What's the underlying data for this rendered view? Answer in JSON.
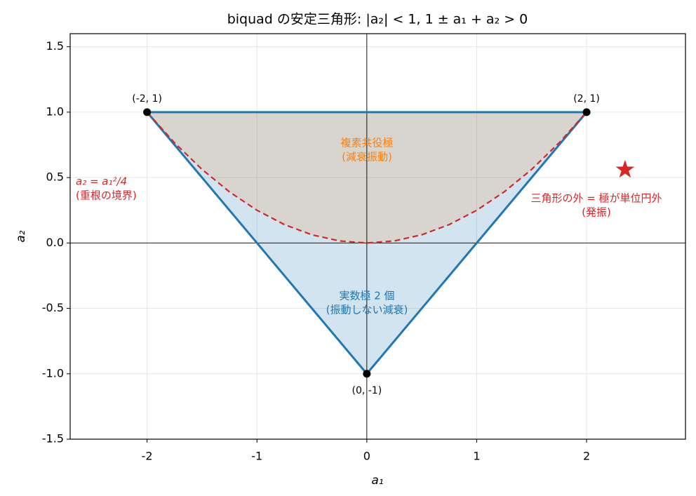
{
  "chart_data": {
    "type": "line",
    "title": "biquad の安定三角形: |a₂| < 1, 1 ± a₁ + a₂ > 0",
    "x_label": "a₁",
    "y_label": "a₂",
    "xlim": [
      -2.7,
      2.9
    ],
    "ylim": [
      -1.5,
      1.6
    ],
    "xticks": [
      -2,
      -1,
      0,
      1,
      2
    ],
    "yticks": [
      {
        "value": -1.5,
        "label": "-1.5"
      },
      {
        "value": -1.0,
        "label": "-1.0"
      },
      {
        "value": -0.5,
        "label": "-0.5"
      },
      {
        "value": 0.0,
        "label": "0.0"
      },
      {
        "value": 0.5,
        "label": "0.5"
      },
      {
        "value": 1.0,
        "label": "1.0"
      },
      {
        "value": 1.5,
        "label": "1.5"
      }
    ],
    "grid": true,
    "series": [
      {
        "color": "#1f77b4",
        "fill": "#1f77b4",
        "dashed": false,
        "x": [
          -2,
          2,
          0,
          -2
        ],
        "values": [
          1,
          1,
          -1,
          1
        ]
      },
      {
        "color": "#d62728",
        "fill": "#ff7f0e",
        "dashed": true,
        "x": [
          -2,
          -1.75,
          -1.5,
          -1.25,
          -1,
          -0.75,
          -0.5,
          -0.25,
          0,
          0.25,
          0.5,
          0.75,
          1,
          1.25,
          1.5,
          1.75,
          2
        ],
        "values": [
          1,
          0.765625,
          0.5625,
          0.390625,
          0.25,
          0.140625,
          0.0625,
          0.015625,
          0,
          0.015625,
          0.0625,
          0.140625,
          0.25,
          0.390625,
          0.5625,
          0.765625,
          1
        ]
      }
    ],
    "points": {
      "color": "#000000",
      "x": [
        -2,
        2,
        0
      ],
      "values": [
        1,
        1,
        -1
      ],
      "labels": [
        "(-2, 1)",
        "(2, 1)",
        "(0, -1)"
      ]
    },
    "marker": {
      "color": "#d62728",
      "x": 2.35,
      "value": 0.56
    },
    "annotations": [
      {
        "color": "#ff7f0e",
        "lines": [
          "複素共役極",
          "(減衰振動)"
        ]
      },
      {
        "color": "#1f77b4",
        "lines": [
          "実数極 2 個",
          "(振動しない減衰)"
        ]
      },
      {
        "color": "#d62728",
        "lines": [
          "a₂ = a₁²/4",
          "(重根の境界)"
        ]
      },
      {
        "color": "#d62728",
        "lines": [
          "三角形の外 = 極が単位円外",
          "(発振)"
        ]
      }
    ]
  }
}
